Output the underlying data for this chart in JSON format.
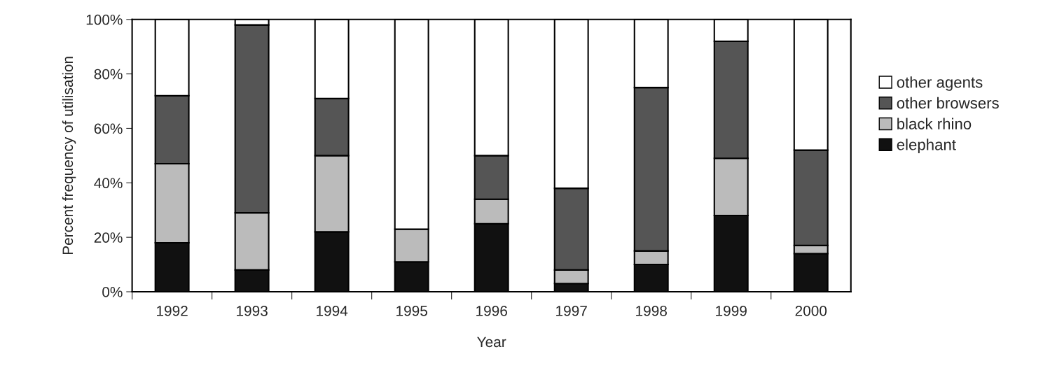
{
  "chart_data": {
    "type": "bar",
    "stacked": true,
    "xlabel": "Year",
    "ylabel": "Percent frequency of utilisation",
    "categories": [
      "1992",
      "1993",
      "1994",
      "1995",
      "1996",
      "1997",
      "1998",
      "1999",
      "2000"
    ],
    "series": [
      {
        "name": "elephant",
        "color": "#111111",
        "values": [
          18,
          8,
          22,
          11,
          25,
          3,
          10,
          28,
          14
        ]
      },
      {
        "name": "black rhino",
        "color": "#bbbbbb",
        "values": [
          29,
          21,
          28,
          12,
          9,
          5,
          5,
          21,
          3
        ]
      },
      {
        "name": "other browsers",
        "color": "#555555",
        "values": [
          25,
          69,
          21,
          0,
          16,
          30,
          60,
          43,
          35
        ]
      },
      {
        "name": "other agents",
        "color": "#ffffff",
        "values": [
          28,
          2,
          29,
          77,
          50,
          62,
          25,
          8,
          48
        ]
      }
    ],
    "ylim": [
      0,
      100
    ],
    "yticks": [
      {
        "value": 0,
        "label": "0%"
      },
      {
        "value": 20,
        "label": "20%"
      },
      {
        "value": 40,
        "label": "40%"
      },
      {
        "value": 60,
        "label": "60%"
      },
      {
        "value": 80,
        "label": "80%"
      },
      {
        "value": 100,
        "label": "100%"
      }
    ],
    "legend": "right",
    "grid": false
  }
}
